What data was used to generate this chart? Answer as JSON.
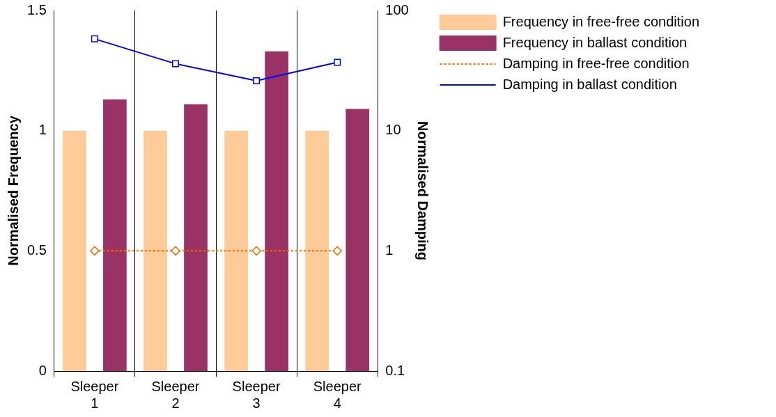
{
  "chart_data": {
    "type": "bar",
    "categories": [
      "Sleeper 1",
      "Sleeper 2",
      "Sleeper 3",
      "Sleeper 4"
    ],
    "ylabel": "Normalised Frequency",
    "y2label": "Normalised Damping",
    "ylim": [
      0,
      1.5
    ],
    "yticks": [
      0,
      0.5,
      1,
      1.5
    ],
    "y2lim": [
      0.1,
      100
    ],
    "y2ticks": [
      0.1,
      1,
      10,
      100
    ],
    "log": "y2",
    "grid": "x",
    "legend": "top right",
    "series": [
      {
        "name": "Frequency in free-free condition",
        "color": "#ffcc99",
        "values": [
          1,
          1,
          1,
          1
        ]
      },
      {
        "name": "Frequency in ballast condition",
        "color": "#993366",
        "values": [
          1.13,
          1.11,
          1.33,
          1.09
        ]
      },
      {
        "name": "Damping in free-free condition",
        "type": "line",
        "axis": "y2",
        "color": "#ff6600",
        "marker": "diamond",
        "line_style": "dotted",
        "values": [
          1,
          1,
          1,
          1
        ]
      },
      {
        "name": "Damping in ballast condition",
        "type": "line",
        "axis": "y2",
        "color": "#0000ff",
        "marker": "square",
        "line_style": "solid",
        "values": [
          58,
          36,
          26,
          37
        ]
      }
    ]
  }
}
